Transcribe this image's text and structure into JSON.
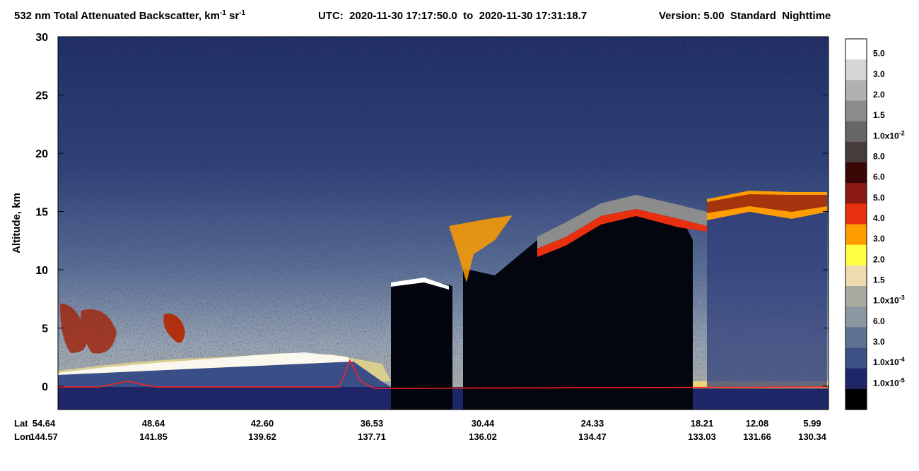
{
  "chart_data": {
    "type": "curtain",
    "title": {
      "main": "532 nm Total Attenuated Backscatter, km",
      "sup1": "-1",
      "mid": " sr",
      "sup2": "-1",
      "utc": "UTC:  2020-11-30 17:17:50.0  to  2020-11-30 17:31:18.7",
      "version": "Version: 5.00  Standard  Nighttime"
    },
    "y_label": "Altitude, km",
    "ylim": [
      -2,
      30
    ],
    "yticks": [
      0,
      5,
      10,
      15,
      20,
      25,
      30
    ],
    "x_row_names": [
      "Lat",
      "Lon"
    ],
    "lat": [
      "54.64",
      "48.64",
      "42.60",
      "36.53",
      "30.44",
      "24.33",
      "18.21",
      "12.08",
      "5.99"
    ],
    "lon": [
      "144.57",
      "141.85",
      "139.62",
      "137.71",
      "136.02",
      "134.47",
      "133.03",
      "131.66",
      "130.34"
    ],
    "colorbar": {
      "colors": [
        "#ffffff",
        "#d6d6d6",
        "#b0b0b0",
        "#8c8c8c",
        "#666666",
        "#463c3a",
        "#3a0606",
        "#8c1a12",
        "#e8300e",
        "#ff9c00",
        "#ffff44",
        "#ecdcae",
        "#a8aca0",
        "#8a98a2",
        "#5e7292",
        "#3c5084",
        "#1e2668",
        "#000000"
      ],
      "labels": [
        {
          "text": "5.0"
        },
        {
          "text": "3.0"
        },
        {
          "text": "2.0"
        },
        {
          "text": "1.5"
        },
        {
          "text": "1.0x10",
          "sup": "-2"
        },
        {
          "text": "8.0"
        },
        {
          "text": "6.0"
        },
        {
          "text": "5.0"
        },
        {
          "text": "4.0"
        },
        {
          "text": "3.0"
        },
        {
          "text": "2.0"
        },
        {
          "text": "1.5"
        },
        {
          "text": "1.0x10",
          "sup": "-3"
        },
        {
          "text": "6.0"
        },
        {
          "text": "3.0"
        },
        {
          "text": "1.0x10",
          "sup": "-4"
        },
        {
          "text": "1.0x10",
          "sup": "-5"
        }
      ]
    }
  }
}
